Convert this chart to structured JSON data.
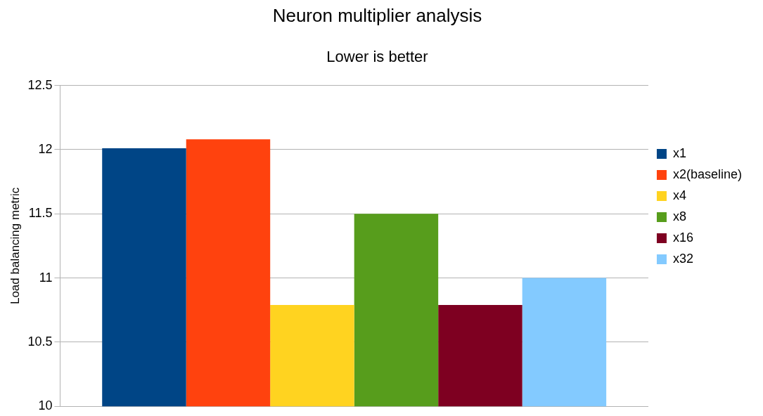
{
  "chart_data": {
    "type": "bar",
    "title": "Neuron multiplier analysis",
    "subtitle": "Lower is better",
    "ylabel": "Load balancing metric",
    "categories": [
      null
    ],
    "series": [
      {
        "name": "x1",
        "color": "#004586",
        "values": [
          12.01
        ]
      },
      {
        "name": "x2(baseline)",
        "color": "#ff420e",
        "values": [
          12.08
        ]
      },
      {
        "name": "x4",
        "color": "#ffd320",
        "values": [
          10.79
        ]
      },
      {
        "name": "x8",
        "color": "#579d1c",
        "values": [
          11.5
        ]
      },
      {
        "name": "x16",
        "color": "#7e0021",
        "values": [
          10.79
        ]
      },
      {
        "name": "x32",
        "color": "#83caff",
        "values": [
          11.0
        ]
      }
    ],
    "ylim": [
      10,
      12.5
    ],
    "yticks": [
      10,
      10.5,
      11,
      11.5,
      12,
      12.5
    ],
    "grid": "y",
    "legend": "right"
  }
}
